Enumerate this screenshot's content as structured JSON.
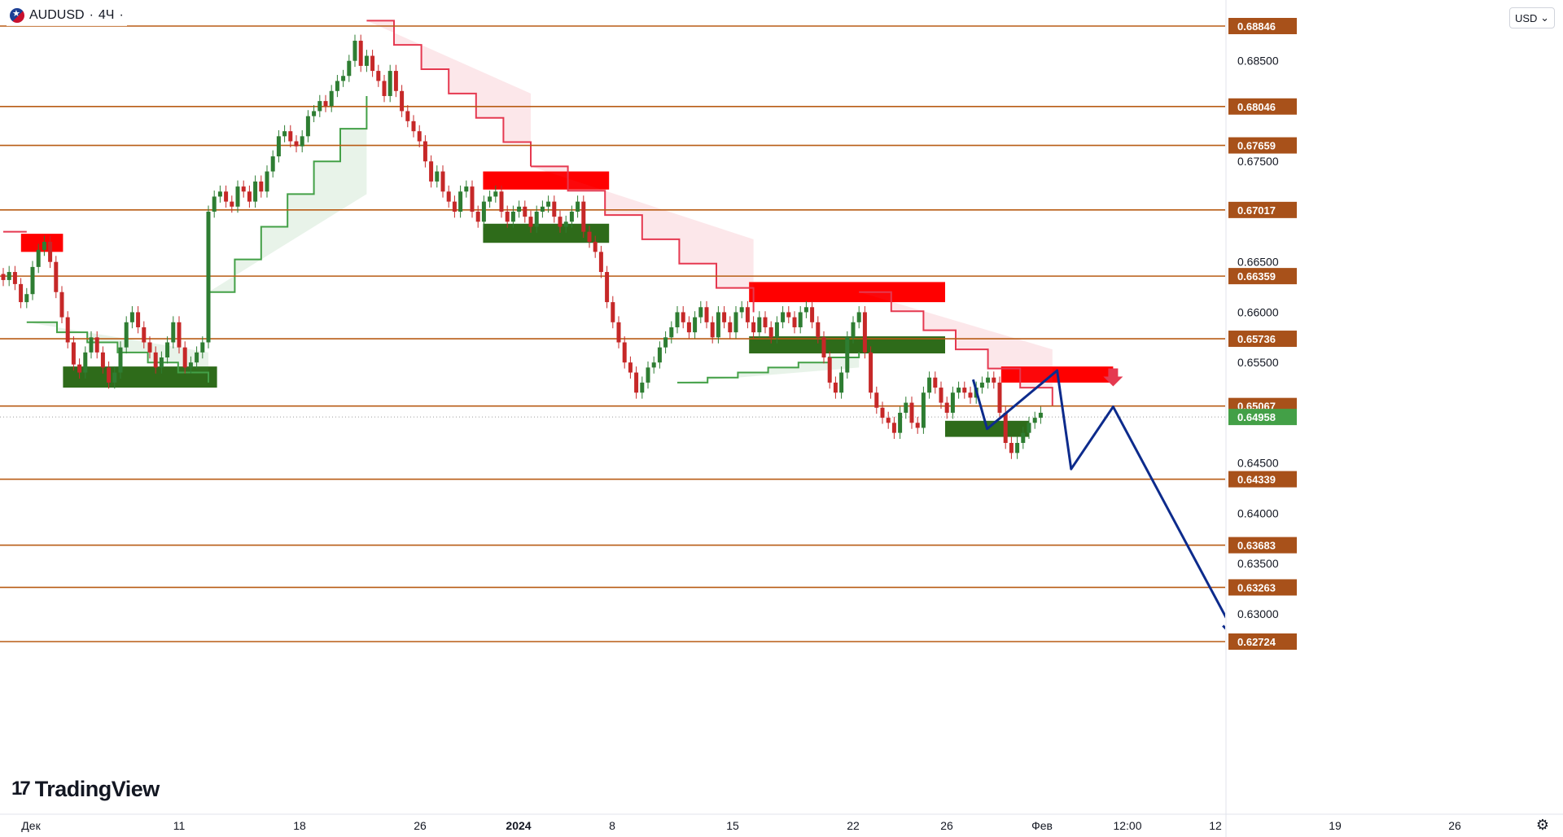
{
  "header": {
    "symbol": "AUDUSD",
    "separator1": "·",
    "timeframe": "4Ч",
    "separator2": "·"
  },
  "currency_select": {
    "value": "USD",
    "arrow": "⌄"
  },
  "logo": {
    "mark": "17",
    "text": "TradingView"
  },
  "icons": {
    "settings": "settings-gear-icon",
    "flag": "australia-flag-icon"
  },
  "colors": {
    "level_line": "#b85c15",
    "level_tag": "#a8511a",
    "up_candle": "#2e7d32",
    "down_candle": "#c62828",
    "resistance_zone": "#ff0000",
    "support_zone": "#2e6b1a",
    "supertrend_down": "#e53950",
    "supertrend_up": "#43a047",
    "forecast_path": "#0d2b8c",
    "current_price_tag": "#43a047",
    "callout_green": "#2bd62b",
    "callout_red": "#e53950"
  },
  "chart_data": {
    "type": "candlestick",
    "title": "AUDUSD · 4Ч",
    "y_axis_ticks": [
      "0.68500",
      "0.67500",
      "0.66500",
      "0.66000",
      "0.65500",
      "0.64500",
      "0.64000",
      "0.63500",
      "0.63000"
    ],
    "x_axis_ticks": [
      "Дек",
      "11",
      "18",
      "26",
      "2024",
      "8",
      "15",
      "22",
      "26",
      "Фев",
      "12:00",
      "12",
      "19",
      "26"
    ],
    "horizontal_levels": [
      "0.68846",
      "0.68046",
      "0.67659",
      "0.67017",
      "0.66359",
      "0.65736",
      "0.65067",
      "0.64339",
      "0.63683",
      "0.63263",
      "0.62724"
    ],
    "current_price": "0.64958",
    "callouts": [
      {
        "label": "0.65736",
        "style": "green",
        "marker": "cross-icon"
      },
      {
        "label": "0.65067",
        "style": "red"
      },
      {
        "label": "0.63263",
        "style": "black"
      },
      {
        "label": "0.62724",
        "style": "black"
      }
    ],
    "zones": [
      {
        "kind": "resistance",
        "from": "Dec 1",
        "to": "Dec 4",
        "low": 0.666,
        "high": 0.6678
      },
      {
        "kind": "support",
        "from": "Dec 4",
        "to": "Dec 15",
        "low": 0.6525,
        "high": 0.6546
      },
      {
        "kind": "resistance",
        "from": "Jan 3",
        "to": "Jan 12",
        "low": 0.6722,
        "high": 0.674
      },
      {
        "kind": "support",
        "from": "Jan 3",
        "to": "Jan 12",
        "low": 0.6669,
        "high": 0.6688
      },
      {
        "kind": "resistance",
        "from": "Jan 22",
        "to": "Feb 5",
        "low": 0.661,
        "high": 0.663
      },
      {
        "kind": "support",
        "from": "Jan 22",
        "to": "Feb 5",
        "low": 0.6559,
        "high": 0.6576
      },
      {
        "kind": "resistance",
        "from": "Feb 9",
        "to": "Feb 17",
        "low": 0.653,
        "high": 0.6546
      },
      {
        "kind": "support",
        "from": "Feb 5",
        "to": "Feb 11",
        "low": 0.6476,
        "high": 0.6492
      }
    ],
    "close_series": [
      0.6632,
      0.664,
      0.6628,
      0.661,
      0.6618,
      0.6645,
      0.6662,
      0.667,
      0.665,
      0.662,
      0.6595,
      0.657,
      0.6548,
      0.654,
      0.656,
      0.6575,
      0.656,
      0.6545,
      0.653,
      0.654,
      0.6565,
      0.659,
      0.66,
      0.6585,
      0.657,
      0.656,
      0.6545,
      0.6555,
      0.657,
      0.659,
      0.6565,
      0.6545,
      0.655,
      0.656,
      0.657,
      0.67,
      0.6715,
      0.672,
      0.671,
      0.6705,
      0.6725,
      0.672,
      0.671,
      0.673,
      0.672,
      0.674,
      0.6755,
      0.6775,
      0.678,
      0.677,
      0.6765,
      0.6775,
      0.6795,
      0.68,
      0.681,
      0.6805,
      0.682,
      0.683,
      0.6835,
      0.685,
      0.687,
      0.6845,
      0.6855,
      0.684,
      0.683,
      0.6815,
      0.684,
      0.682,
      0.68,
      0.679,
      0.678,
      0.677,
      0.675,
      0.673,
      0.674,
      0.672,
      0.671,
      0.67,
      0.672,
      0.6725,
      0.67,
      0.669,
      0.671,
      0.6715,
      0.672,
      0.67,
      0.669,
      0.67,
      0.6705,
      0.6695,
      0.6685,
      0.67,
      0.6705,
      0.671,
      0.6695,
      0.6685,
      0.669,
      0.67,
      0.671,
      0.668,
      0.667,
      0.666,
      0.664,
      0.661,
      0.659,
      0.657,
      0.655,
      0.654,
      0.652,
      0.653,
      0.6545,
      0.655,
      0.6565,
      0.6575,
      0.6585,
      0.66,
      0.659,
      0.658,
      0.6595,
      0.6605,
      0.659,
      0.6575,
      0.66,
      0.659,
      0.658,
      0.66,
      0.6605,
      0.659,
      0.658,
      0.6595,
      0.6585,
      0.6575,
      0.659,
      0.66,
      0.6595,
      0.6585,
      0.66,
      0.6605,
      0.659,
      0.6575,
      0.6555,
      0.653,
      0.652,
      0.654,
      0.6575,
      0.659,
      0.66,
      0.656,
      0.652,
      0.6505,
      0.6495,
      0.649,
      0.648,
      0.65,
      0.651,
      0.649,
      0.6485,
      0.652,
      0.6535,
      0.6525,
      0.651,
      0.65,
      0.652,
      0.6525,
      0.652,
      0.6515,
      0.6525,
      0.653,
      0.6535,
      0.653,
      0.65,
      0.647,
      0.646,
      0.647,
      0.648,
      0.649,
      0.6495,
      0.65
    ],
    "supertrend": [
      {
        "trend": "down",
        "from_index": 0,
        "to_index": 4,
        "value": 0.668
      },
      {
        "trend": "up",
        "from_index": 4,
        "to_index": 35,
        "start": 0.659,
        "end": 0.653
      },
      {
        "trend": "up",
        "from_index": 35,
        "to_index": 62,
        "start": 0.662,
        "end": 0.6815
      },
      {
        "trend": "down",
        "from_index": 62,
        "to_index": 90,
        "start": 0.689,
        "end": 0.6745
      },
      {
        "trend": "down",
        "from_index": 90,
        "to_index": 128,
        "start": 0.6745,
        "end": 0.66
      },
      {
        "trend": "up",
        "from_index": 115,
        "to_index": 146,
        "start": 0.653,
        "end": 0.656
      },
      {
        "trend": "down",
        "from_index": 146,
        "to_index": 179,
        "start": 0.662,
        "end": 0.6506
      }
    ],
    "forecast_path": [
      {
        "date": "Feb 7",
        "price": 0.6533
      },
      {
        "date": "Feb 8",
        "price": 0.6484
      },
      {
        "date": "Feb 13",
        "price": 0.6542
      },
      {
        "date": "Feb 14",
        "price": 0.6444
      },
      {
        "date": "Feb 17",
        "price": 0.6506
      },
      {
        "date": "Feb 26",
        "price": 0.6272
      }
    ]
  }
}
